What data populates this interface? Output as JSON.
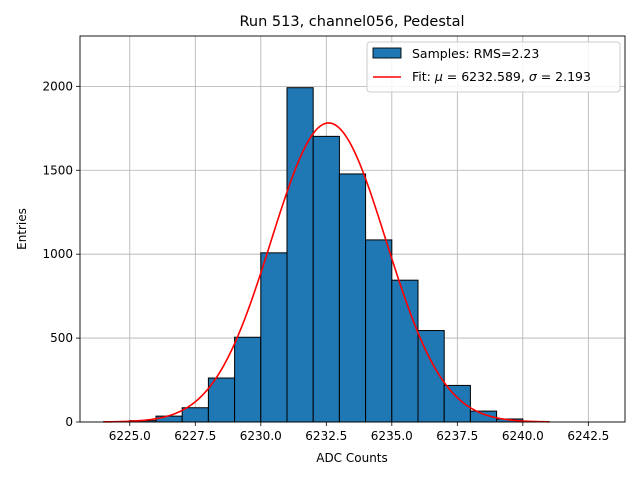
{
  "chart_data": {
    "type": "bar",
    "title": "Run 513, channel056, Pedestal",
    "xlabel": "ADC Counts",
    "ylabel": "Entries",
    "xlim": [
      6223.1,
      6243.9
    ],
    "ylim": [
      0,
      2300
    ],
    "grid": true,
    "legend_position": "top-right",
    "x_ticks": [
      6225.0,
      6227.5,
      6230.0,
      6232.5,
      6235.0,
      6237.5,
      6240.0,
      6242.5
    ],
    "x_tick_labels": [
      "6225.0",
      "6227.5",
      "6230.0",
      "6232.5",
      "6235.0",
      "6237.5",
      "6240.0",
      "6242.5"
    ],
    "y_ticks": [
      0,
      500,
      1000,
      1500,
      2000
    ],
    "y_tick_labels": [
      "0",
      "500",
      "1000",
      "1500",
      "2000"
    ],
    "histogram": {
      "name": "Samples: RMS=2.23",
      "color": "#1f77b4",
      "edge_color": "#000000",
      "bin_edges": [
        6224,
        6225,
        6226,
        6227,
        6228,
        6229,
        6230,
        6231,
        6232,
        6233,
        6234,
        6235,
        6236,
        6237,
        6238,
        6239,
        6240,
        6241
      ],
      "counts": [
        2,
        8,
        35,
        85,
        262,
        505,
        1008,
        1992,
        1702,
        1478,
        1085,
        845,
        545,
        218,
        65,
        18,
        3
      ]
    },
    "fit": {
      "name": "Fit: μ = 6232.589, σ = 2.193",
      "legend_parts": [
        "Fit: ",
        "μ",
        " = 6232.589, ",
        "σ",
        " = 2.193"
      ],
      "color": "#ff0000",
      "mu": 6232.589,
      "sigma": 2.193,
      "amplitude": 1782,
      "x_range": [
        6224,
        6241
      ]
    }
  }
}
